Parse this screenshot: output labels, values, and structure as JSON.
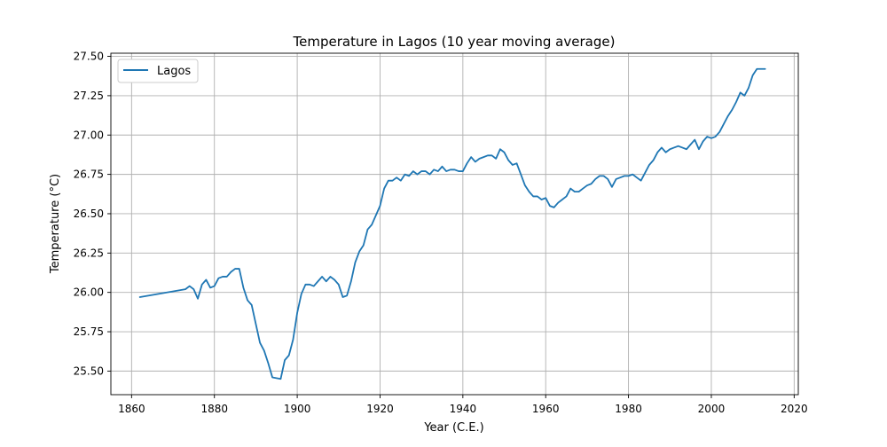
{
  "chart_data": {
    "type": "line",
    "title": "Temperature in Lagos (10 year moving average)",
    "xlabel": "Year (C.E.)",
    "ylabel": "Temperature (°C)",
    "xlim": [
      1855,
      2021
    ],
    "ylim": [
      25.35,
      27.52
    ],
    "xticks": [
      1860,
      1880,
      1900,
      1920,
      1940,
      1960,
      1980,
      2000,
      2020
    ],
    "xtick_labels": [
      "1860",
      "1880",
      "1900",
      "1920",
      "1940",
      "1960",
      "1980",
      "2000",
      "2020"
    ],
    "yticks": [
      25.5,
      25.75,
      26.0,
      26.25,
      26.5,
      26.75,
      27.0,
      27.25,
      27.5
    ],
    "ytick_labels": [
      "25.50",
      "25.75",
      "26.00",
      "26.25",
      "26.50",
      "26.75",
      "27.00",
      "27.25",
      "27.50"
    ],
    "grid": true,
    "legend": {
      "position": "top-left",
      "entries": [
        "Lagos"
      ]
    },
    "series": [
      {
        "name": "Lagos",
        "color": "#1f77b4",
        "x": [
          1862,
          1873,
          1874,
          1875,
          1876,
          1877,
          1878,
          1879,
          1880,
          1881,
          1882,
          1883,
          1884,
          1885,
          1886,
          1887,
          1888,
          1889,
          1890,
          1891,
          1892,
          1893,
          1894,
          1895,
          1896,
          1897,
          1898,
          1899,
          1900,
          1901,
          1902,
          1903,
          1904,
          1905,
          1906,
          1907,
          1908,
          1909,
          1910,
          1911,
          1912,
          1913,
          1914,
          1915,
          1916,
          1917,
          1918,
          1919,
          1920,
          1921,
          1922,
          1923,
          1924,
          1925,
          1926,
          1927,
          1928,
          1929,
          1930,
          1931,
          1932,
          1933,
          1934,
          1935,
          1936,
          1937,
          1938,
          1939,
          1940,
          1941,
          1942,
          1943,
          1944,
          1945,
          1946,
          1947,
          1948,
          1949,
          1950,
          1951,
          1952,
          1953,
          1954,
          1955,
          1956,
          1957,
          1958,
          1959,
          1960,
          1961,
          1962,
          1963,
          1964,
          1965,
          1966,
          1967,
          1968,
          1969,
          1970,
          1971,
          1972,
          1973,
          1974,
          1975,
          1976,
          1977,
          1978,
          1979,
          1980,
          1981,
          1982,
          1983,
          1984,
          1985,
          1986,
          1987,
          1988,
          1989,
          1990,
          1991,
          1992,
          1993,
          1994,
          1995,
          1996,
          1997,
          1998,
          1999,
          2000,
          2001,
          2002,
          2003,
          2004,
          2005,
          2006,
          2007,
          2008,
          2009,
          2010,
          2011,
          2012,
          2013
        ],
        "values": [
          25.97,
          26.02,
          26.04,
          26.02,
          25.96,
          26.05,
          26.08,
          26.03,
          26.04,
          26.09,
          26.1,
          26.1,
          26.13,
          26.15,
          26.15,
          26.03,
          25.95,
          25.92,
          25.8,
          25.68,
          25.63,
          25.55,
          25.46,
          25.455,
          25.45,
          25.57,
          25.6,
          25.7,
          25.87,
          25.99,
          26.05,
          26.05,
          26.04,
          26.07,
          26.1,
          26.07,
          26.1,
          26.08,
          26.05,
          25.97,
          25.98,
          26.07,
          26.19,
          26.26,
          26.3,
          26.4,
          26.43,
          26.49,
          26.55,
          26.66,
          26.71,
          26.71,
          26.73,
          26.71,
          26.75,
          26.74,
          26.77,
          26.75,
          26.77,
          26.77,
          26.75,
          26.78,
          26.77,
          26.8,
          26.77,
          26.78,
          26.78,
          26.77,
          26.77,
          26.82,
          26.86,
          26.83,
          26.85,
          26.86,
          26.87,
          26.87,
          26.85,
          26.91,
          26.89,
          26.84,
          26.81,
          26.82,
          26.75,
          26.68,
          26.64,
          26.61,
          26.61,
          26.59,
          26.6,
          26.55,
          26.54,
          26.57,
          26.59,
          26.61,
          26.66,
          26.64,
          26.64,
          26.66,
          26.68,
          26.69,
          26.72,
          26.74,
          26.74,
          26.72,
          26.67,
          26.72,
          26.73,
          26.74,
          26.74,
          26.75,
          26.73,
          26.71,
          26.76,
          26.81,
          26.84,
          26.89,
          26.92,
          26.89,
          26.91,
          26.92,
          26.93,
          26.92,
          26.91,
          26.94,
          26.97,
          26.91,
          26.96,
          26.99,
          26.98,
          26.99,
          27.02,
          27.07,
          27.12,
          27.16,
          27.21,
          27.27,
          27.25,
          27.3,
          27.38,
          27.42,
          27.42,
          27.42
        ]
      }
    ]
  }
}
